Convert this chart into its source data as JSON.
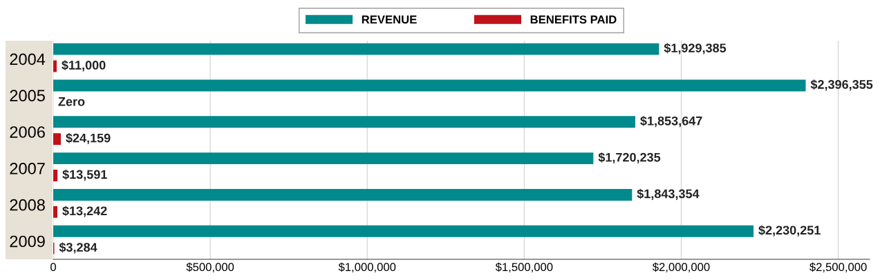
{
  "chart_data": {
    "type": "bar",
    "orientation": "horizontal",
    "categories": [
      "2004",
      "2005",
      "2006",
      "2007",
      "2008",
      "2009"
    ],
    "series": [
      {
        "name": "REVENUE",
        "color": "#008a8c",
        "values": [
          1929385,
          2396355,
          1853647,
          1720235,
          1843354,
          2230251
        ],
        "value_labels": [
          "$1,929,385",
          "$2,396,355",
          "$1,853,647",
          "$1,720,235",
          "$1,843,354",
          "$2,230,251"
        ]
      },
      {
        "name": "BENEFITS PAID",
        "color": "#c0121b",
        "values": [
          11000,
          0,
          24159,
          13591,
          13242,
          3284
        ],
        "value_labels": [
          "$11,000",
          "Zero",
          "$24,159",
          "$13,591",
          "$13,242",
          "$3,284"
        ]
      }
    ],
    "xlim": [
      0,
      2600000
    ],
    "xticks": [
      0,
      {
        "value": 500000,
        "label": "$500,000"
      },
      {
        "value": 1000000,
        "label": "$1,000,000"
      },
      {
        "value": 1500000,
        "label": "$1,500,000"
      },
      {
        "value": 2000000,
        "label": "$2,000,000"
      },
      {
        "value": 2500000,
        "label": "$2,500,000"
      }
    ],
    "grid": "x",
    "legend": "top"
  }
}
